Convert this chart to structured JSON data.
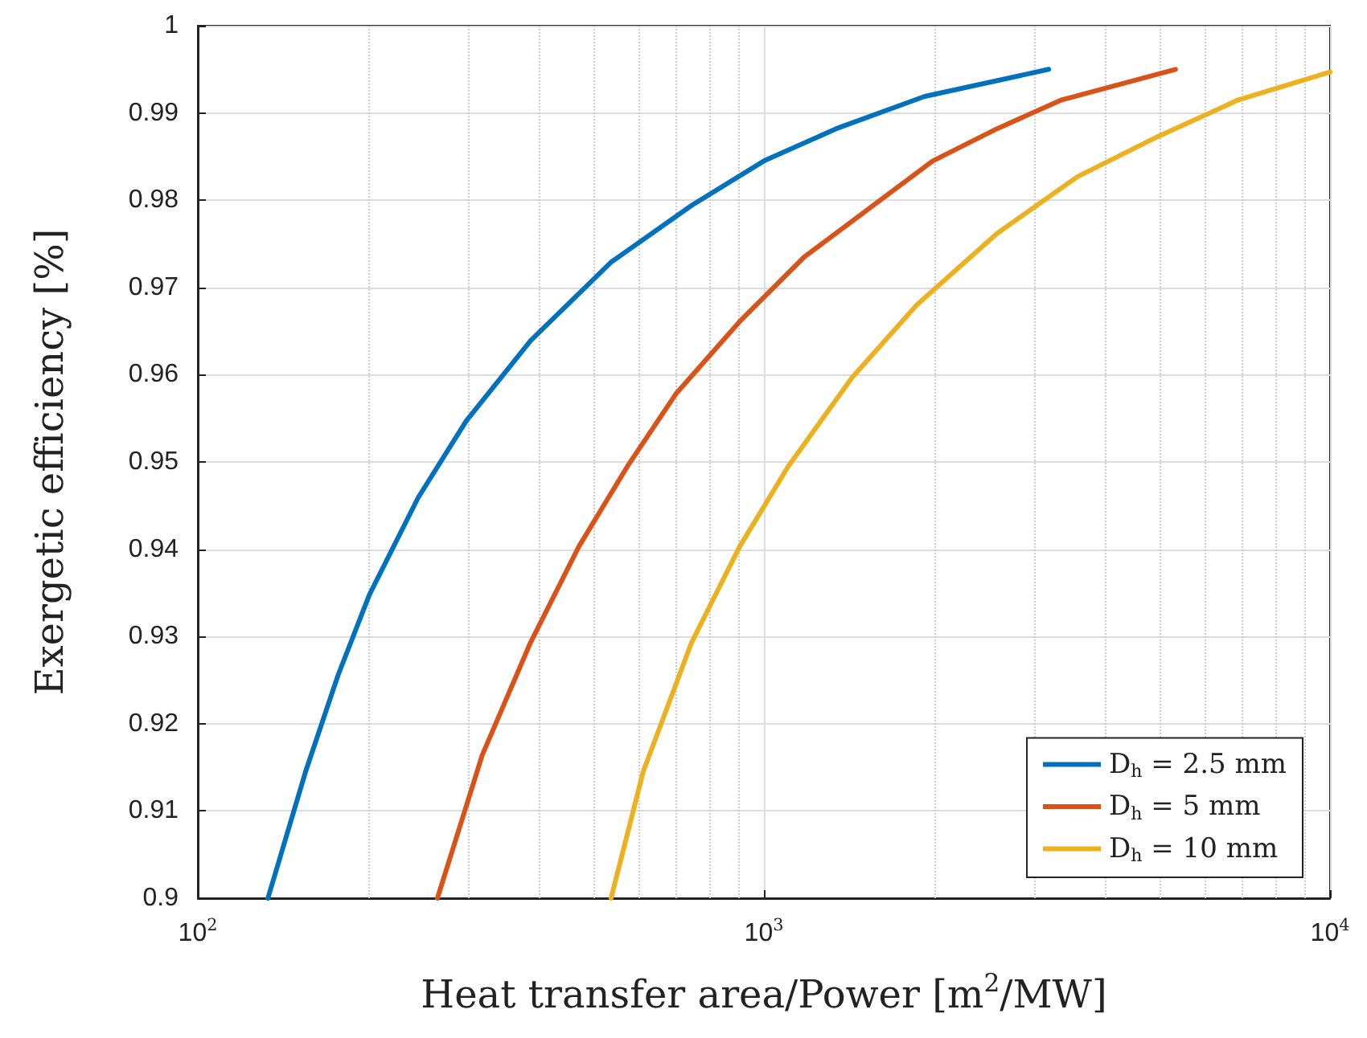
{
  "chart_data": {
    "type": "line",
    "xlabel": "Heat transfer area/Power [m$^{2}$/MW]",
    "ylabel": "Exergetic efficiency [%]",
    "log": "x",
    "xlim": [
      100,
      10000
    ],
    "xticks": [
      {
        "value": 100,
        "label": "10$^{2}$"
      },
      {
        "value": 1000,
        "label": "10$^{3}$"
      },
      {
        "value": 10000,
        "label": "10$^{4}$"
      }
    ],
    "ylim": [
      0.9,
      1
    ],
    "yticks": [
      0.9,
      0.91,
      0.92,
      0.93,
      0.94,
      0.95,
      0.96,
      0.97,
      0.98,
      0.99,
      1
    ],
    "grid": true,
    "legend": "bottom right",
    "line_style": "solid",
    "marker": "none",
    "series": [
      {
        "name": "D$_{h}$ = 2.5 mm",
        "color": "#0072bd",
        "x": [
          133,
          155,
          177,
          201,
          245,
          298,
          387,
          537,
          745,
          1000,
          1342,
          1923,
          3184
        ],
        "values": [
          0.9,
          0.9145,
          0.9256,
          0.9348,
          0.9459,
          0.9547,
          0.9639,
          0.9729,
          0.9794,
          0.9845,
          0.9882,
          0.9919,
          0.995
        ]
      },
      {
        "name": "D$_{h}$ = 5 mm",
        "color": "#d95319",
        "x": [
          265,
          318,
          387,
          471,
          574,
          699,
          906,
          1178,
          1530,
          1987,
          2582,
          3357,
          5334
        ],
        "values": [
          0.9,
          0.9164,
          0.9293,
          0.9403,
          0.9495,
          0.9578,
          0.9661,
          0.9735,
          0.979,
          0.9845,
          0.9882,
          0.9915,
          0.995
        ]
      },
      {
        "name": "D$_{h}$ = 10 mm",
        "color": "#edb120",
        "x": [
          537,
          612,
          745,
          906,
          1104,
          1432,
          1862,
          2582,
          3581,
          4966,
          6887,
          10000
        ],
        "values": [
          0.9,
          0.9145,
          0.9293,
          0.9403,
          0.9495,
          0.9597,
          0.968,
          0.9762,
          0.9827,
          0.9873,
          0.9915,
          0.9947
        ]
      }
    ]
  }
}
